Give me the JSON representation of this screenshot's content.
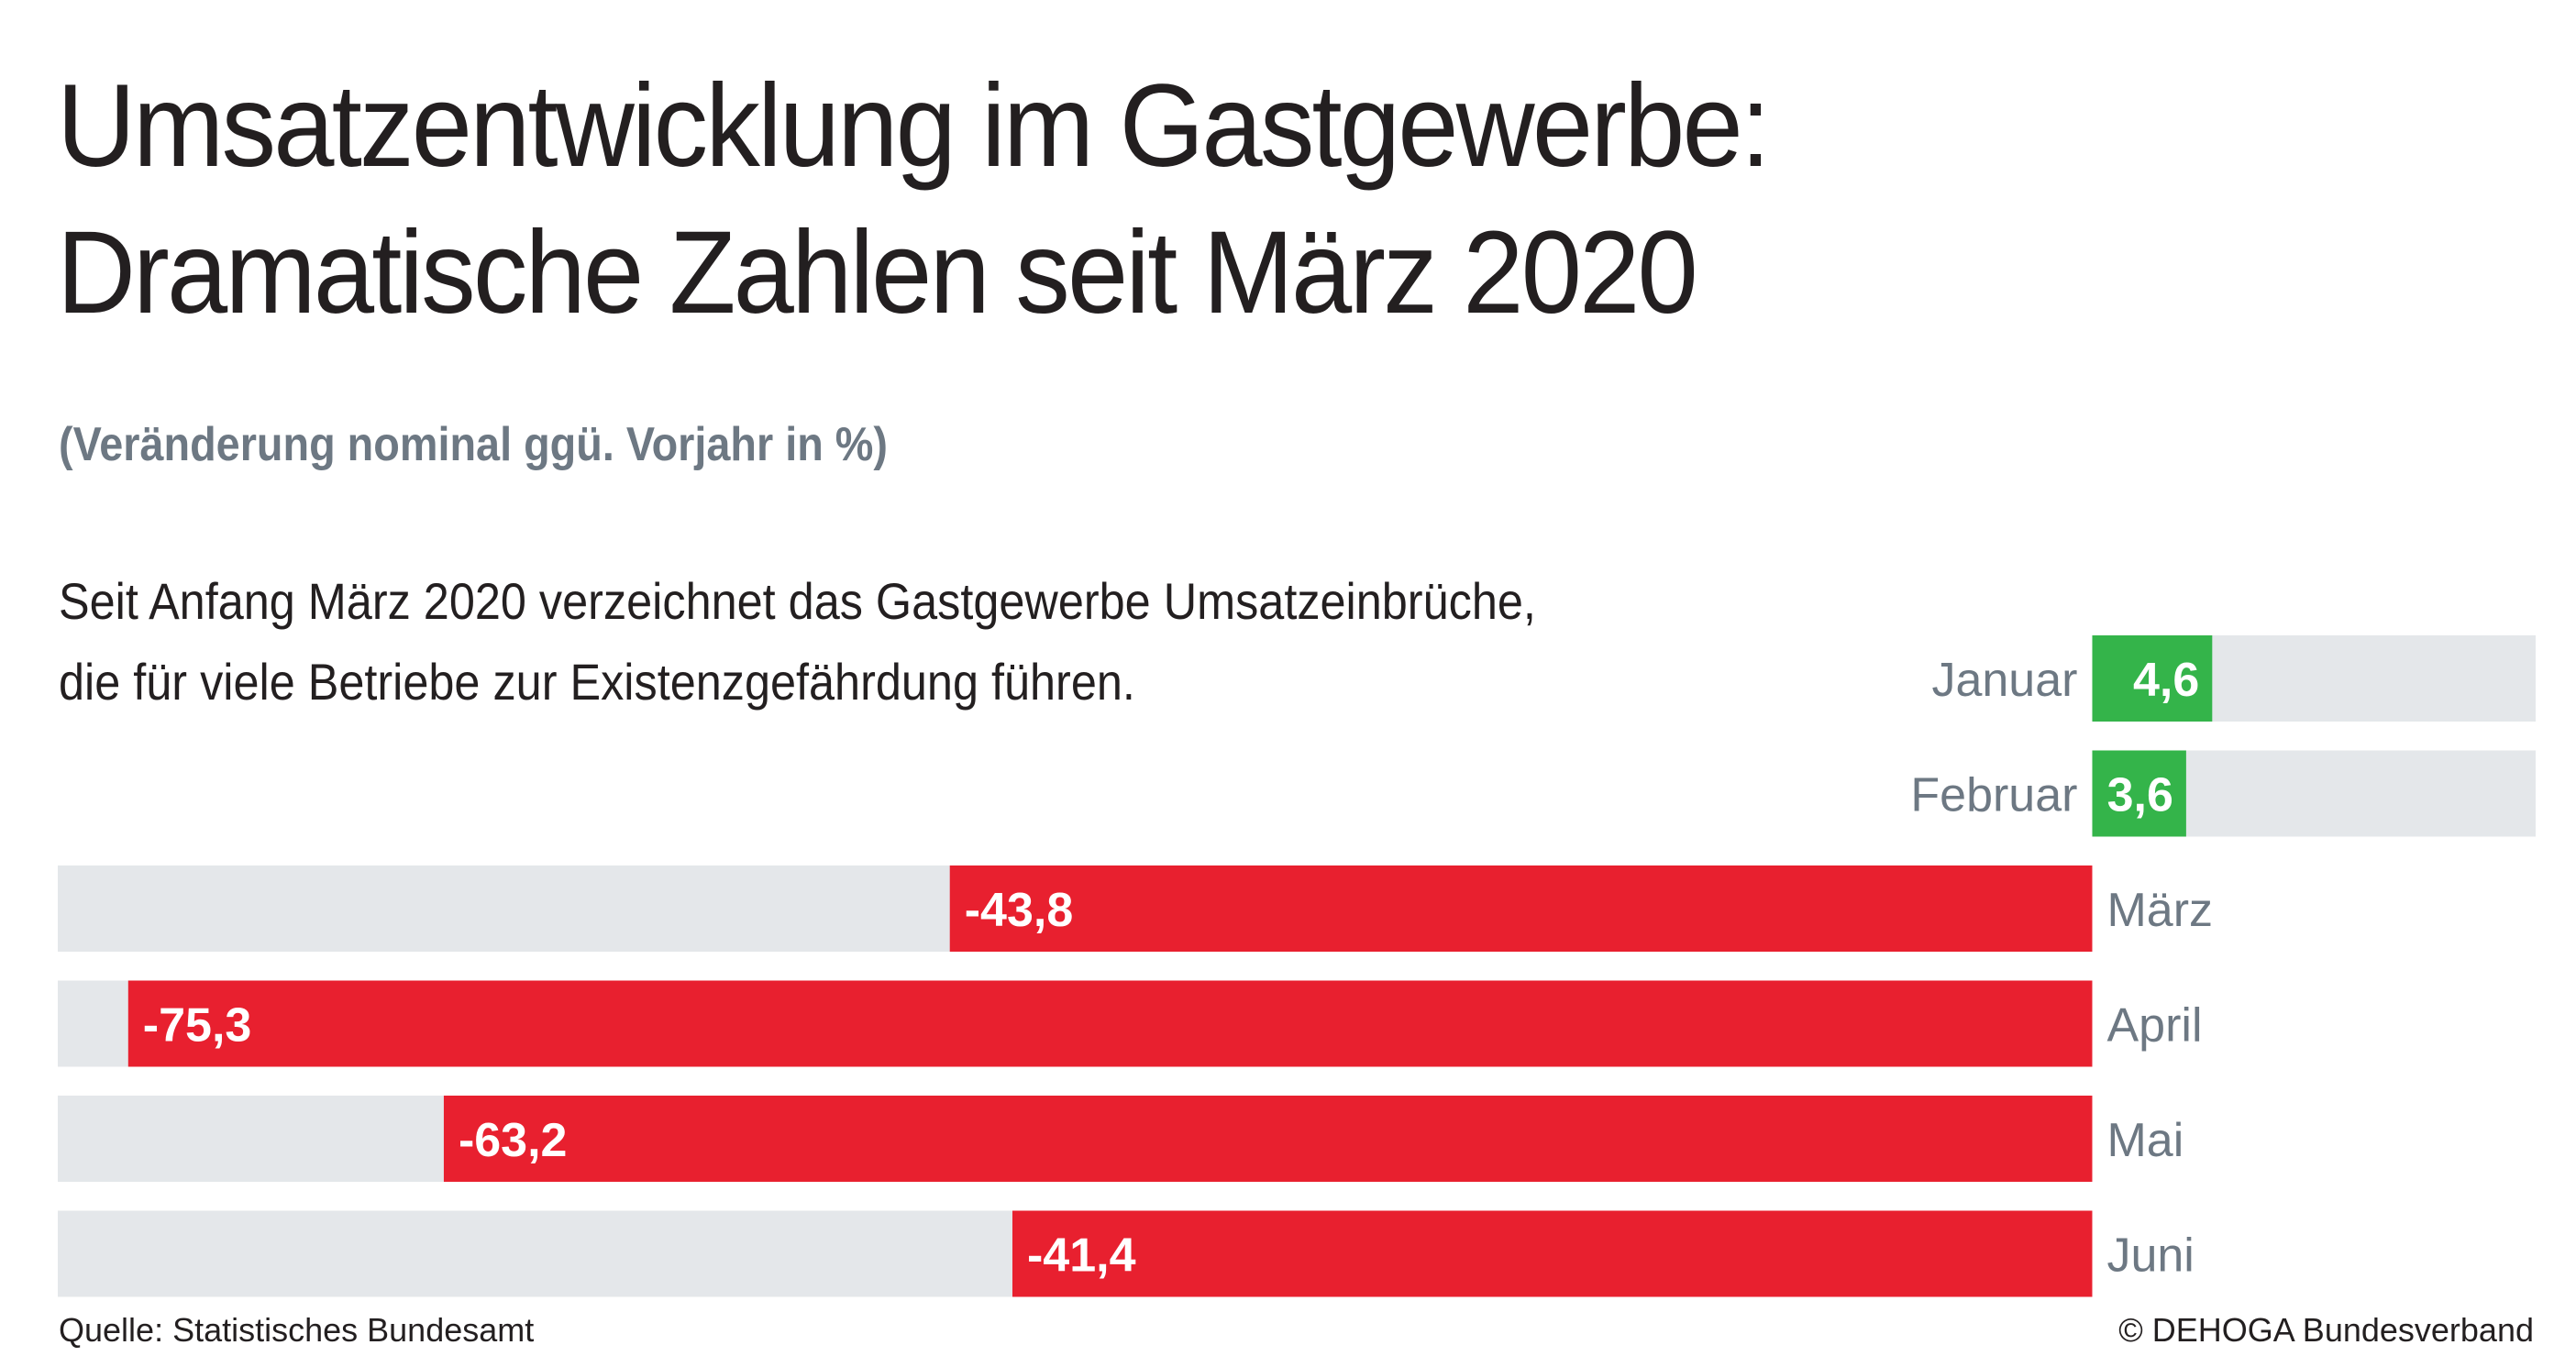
{
  "title": [
    "Umsatzentwicklung im Gastgewerbe:",
    "Dramatische Zahlen seit März 2020"
  ],
  "subtitle": "(Veränderung nominal ggü. Vorjahr in %)",
  "description": [
    "Seit Anfang März 2020 verzeichnet das Gastgewerbe Umsatzeinbrüche,",
    "die für viele Betriebe zur Existenzgefährdung führen."
  ],
  "source": "Quelle: Statistisches Bundesamt",
  "copyright": "© DEHOGA Bundesverband",
  "chart_data": {
    "type": "bar",
    "orientation": "horizontal",
    "categories": [
      "Januar",
      "Februar",
      "März",
      "April",
      "Mai",
      "Juni"
    ],
    "values": [
      4.6,
      3.6,
      -43.8,
      -75.3,
      -63.2,
      -41.4
    ],
    "data_labels": [
      "4,6",
      "3,6",
      "-43,8",
      "-75,3",
      "-63,2",
      "-41,4"
    ],
    "xlim": [
      -78,
      17
    ],
    "grid": false,
    "colors": {
      "positive": "#34b44a",
      "negative": "#e8202f",
      "track": "#e4e7ea",
      "category_label": "#6d7883"
    }
  }
}
